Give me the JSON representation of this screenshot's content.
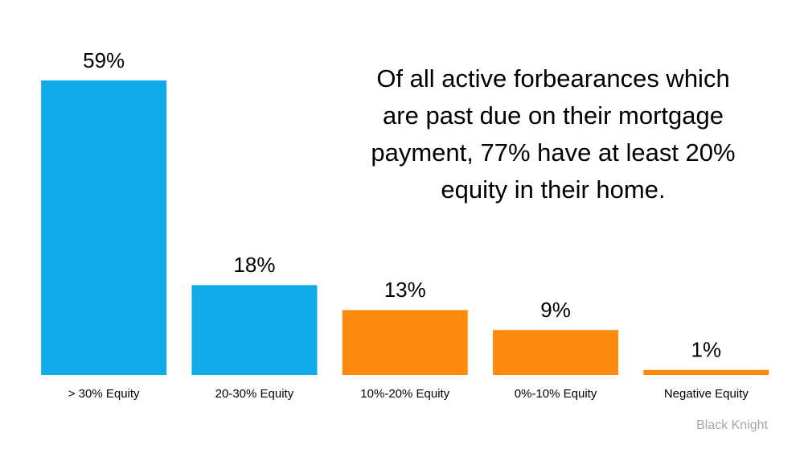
{
  "chart_data": {
    "type": "bar",
    "categories": [
      "> 30% Equity",
      "20-30% Equity",
      "10%-20% Equity",
      "0%-10% Equity",
      "Negative Equity"
    ],
    "values": [
      59,
      18,
      13,
      9,
      1
    ],
    "value_labels": [
      "59%",
      "18%",
      "13%",
      "9%",
      "1%"
    ],
    "colors": [
      "#0eaaea",
      "#0eaaea",
      "#fd8a0e",
      "#fd8a0e",
      "#fd8a0e"
    ],
    "annotation": [
      "Of all active forbearances which",
      "are past due on their mortgage",
      "payment, 77% have at least 20%",
      "equity in their home."
    ],
    "source": "Black Knight"
  }
}
